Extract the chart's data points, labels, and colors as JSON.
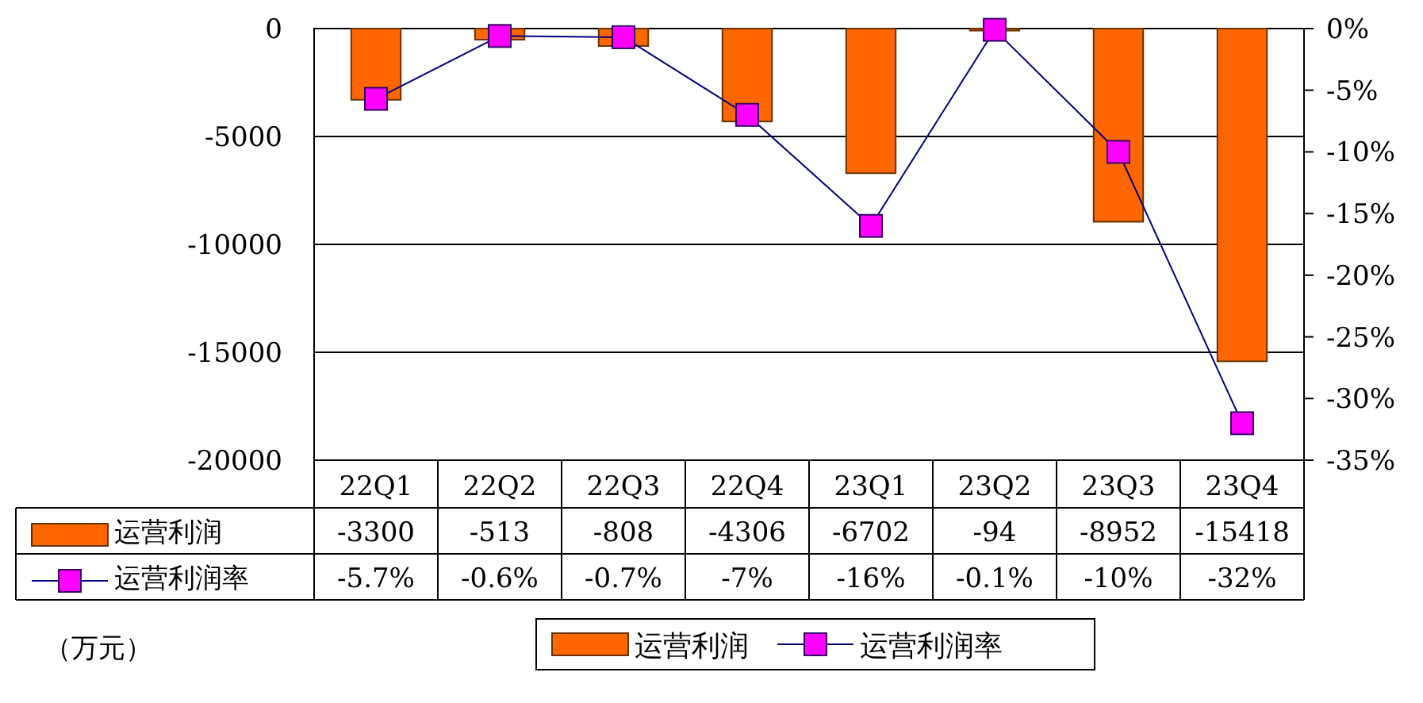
{
  "chart_data": {
    "type": "bar",
    "categories": [
      "22Q1",
      "22Q2",
      "22Q3",
      "22Q4",
      "23Q1",
      "23Q2",
      "23Q3",
      "23Q4"
    ],
    "series": [
      {
        "name": "运营利润",
        "color": "#ff6600",
        "values": [
          -3300,
          -513,
          -808,
          -4306,
          -6702,
          -94,
          -8952,
          -15418
        ],
        "value_labels": [
          "-3300",
          "-513",
          "-808",
          "-4306",
          "-6702",
          "-94",
          "-8952",
          "-15418"
        ]
      },
      {
        "name": "运营利润率",
        "type": "line",
        "axis": "y2",
        "marker": "square",
        "color": "#ff00ff",
        "values": [
          -5.7,
          -0.6,
          -0.7,
          -7,
          -16,
          -0.1,
          -10,
          -32
        ],
        "value_labels": [
          "-5.7%",
          "-0.6%",
          "-0.7%",
          "-7%",
          "-16%",
          "-0.1%",
          "-10%",
          "-32%"
        ]
      }
    ],
    "ylim": [
      -20000,
      0
    ],
    "yticks": [
      0,
      -5000,
      -10000,
      -15000,
      -20000
    ],
    "y2lim": [
      -35,
      0
    ],
    "y2ticks": [
      {
        "value": 0,
        "label": "0%"
      },
      {
        "value": -5,
        "label": "-5%"
      },
      {
        "value": -10,
        "label": "-10%"
      },
      {
        "value": -15,
        "label": "-15%"
      },
      {
        "value": -20,
        "label": "-20%"
      },
      {
        "value": -25,
        "label": "-25%"
      },
      {
        "value": -30,
        "label": "-30%"
      },
      {
        "value": -35,
        "label": "-35%"
      }
    ],
    "grid": "y",
    "legend": "bottom",
    "annotations": [
      "（万元）"
    ]
  }
}
